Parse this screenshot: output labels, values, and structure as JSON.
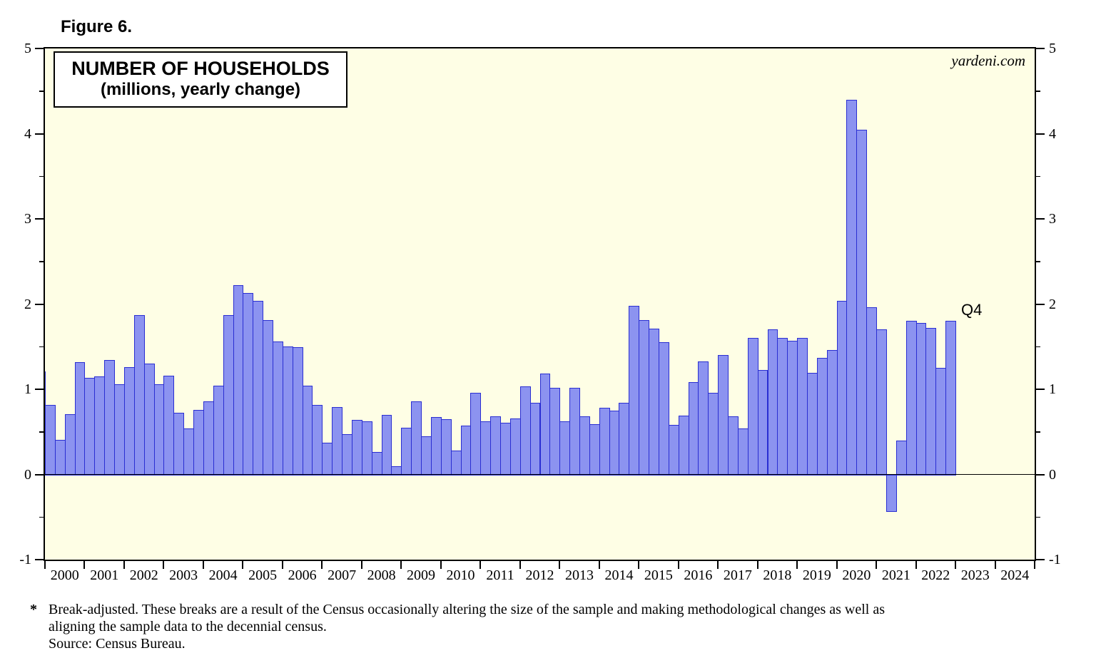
{
  "figure_label": "Figure 6.",
  "watermark": "yardeni.com",
  "title": {
    "line1": "NUMBER OF HOUSEHOLDS",
    "line2": "(millions, yearly change)"
  },
  "annotation": {
    "last_point_label": "Q4"
  },
  "footnote": {
    "marker": "*",
    "line1": "Break-adjusted. These breaks are a result of the Census occasionally altering the size of the sample and making methodological changes as well as",
    "line2": "aligning the sample data to the decennial census.",
    "source": "Source: Census Bureau."
  },
  "colors": {
    "bar_fill": "#8C93F0",
    "bar_border": "#2A2ED2",
    "plot_bg": "#FEFEE5",
    "axis": "#000000",
    "page_bg": "#FFFFFF"
  },
  "chart_data": {
    "type": "bar",
    "title": "NUMBER OF HOUSEHOLDS",
    "subtitle": "(millions, yearly change)",
    "ylabel": "Households, millions, yearly change",
    "ylim": [
      -1,
      5
    ],
    "yticks_major": [
      -1,
      0,
      1,
      2,
      3,
      4,
      5
    ],
    "ytick_minor_step": 0.5,
    "grid": false,
    "legend": "none",
    "x_axis_years": [
      "2000",
      "2001",
      "2002",
      "2003",
      "2004",
      "2005",
      "2006",
      "2007",
      "2008",
      "2009",
      "2010",
      "2011",
      "2012",
      "2013",
      "2014",
      "2015",
      "2016",
      "2017",
      "2018",
      "2019",
      "2020",
      "2021",
      "2022",
      "2023",
      "2024"
    ],
    "points": [
      [
        "1999Q4",
        1.21
      ],
      [
        "2000Q1",
        0.82
      ],
      [
        "2000Q2",
        0.41
      ],
      [
        "2000Q3",
        0.71
      ],
      [
        "2000Q4",
        1.32
      ],
      [
        "2001Q1",
        1.13
      ],
      [
        "2001Q2",
        1.15
      ],
      [
        "2001Q3",
        1.34
      ],
      [
        "2001Q4",
        1.06
      ],
      [
        "2002Q1",
        1.26
      ],
      [
        "2002Q2",
        1.87
      ],
      [
        "2002Q3",
        1.3
      ],
      [
        "2002Q4",
        1.06
      ],
      [
        "2003Q1",
        1.16
      ],
      [
        "2003Q2",
        0.72
      ],
      [
        "2003Q3",
        0.54
      ],
      [
        "2003Q4",
        0.76
      ],
      [
        "2004Q1",
        0.86
      ],
      [
        "2004Q2",
        1.04
      ],
      [
        "2004Q3",
        1.87
      ],
      [
        "2004Q4",
        2.22
      ],
      [
        "2005Q1",
        2.13
      ],
      [
        "2005Q2",
        2.04
      ],
      [
        "2005Q3",
        1.81
      ],
      [
        "2005Q4",
        1.56
      ],
      [
        "2006Q1",
        1.5
      ],
      [
        "2006Q2",
        1.49
      ],
      [
        "2006Q3",
        1.04
      ],
      [
        "2006Q4",
        0.82
      ],
      [
        "2007Q1",
        0.37
      ],
      [
        "2007Q2",
        0.79
      ],
      [
        "2007Q3",
        0.47
      ],
      [
        "2007Q4",
        0.64
      ],
      [
        "2008Q1",
        0.62
      ],
      [
        "2008Q2",
        0.26
      ],
      [
        "2008Q3",
        0.7
      ],
      [
        "2008Q4",
        0.1
      ],
      [
        "2009Q1",
        0.55
      ],
      [
        "2009Q2",
        0.86
      ],
      [
        "2009Q3",
        0.45
      ],
      [
        "2009Q4",
        0.67
      ],
      [
        "2010Q1",
        0.65
      ],
      [
        "2010Q2",
        0.28
      ],
      [
        "2010Q3",
        0.57
      ],
      [
        "2010Q4",
        0.96
      ],
      [
        "2011Q1",
        0.62
      ],
      [
        "2011Q2",
        0.68
      ],
      [
        "2011Q3",
        0.61
      ],
      [
        "2011Q4",
        0.66
      ],
      [
        "2012Q1",
        1.03
      ],
      [
        "2012Q2",
        0.84
      ],
      [
        "2012Q3",
        1.18
      ],
      [
        "2012Q4",
        1.02
      ],
      [
        "2013Q1",
        0.62
      ],
      [
        "2013Q2",
        1.02
      ],
      [
        "2013Q3",
        0.68
      ],
      [
        "2013Q4",
        0.59
      ],
      [
        "2014Q1",
        0.78
      ],
      [
        "2014Q2",
        0.75
      ],
      [
        "2014Q3",
        0.84
      ],
      [
        "2014Q4",
        1.98
      ],
      [
        "2015Q1",
        1.81
      ],
      [
        "2015Q2",
        1.71
      ],
      [
        "2015Q3",
        1.55
      ],
      [
        "2015Q4",
        0.58
      ],
      [
        "2016Q1",
        0.69
      ],
      [
        "2016Q2",
        1.08
      ],
      [
        "2016Q3",
        1.33
      ],
      [
        "2016Q4",
        0.96
      ],
      [
        "2017Q1",
        1.4
      ],
      [
        "2017Q2",
        0.68
      ],
      [
        "2017Q3",
        0.54
      ],
      [
        "2017Q4",
        1.6
      ],
      [
        "2018Q1",
        1.23
      ],
      [
        "2018Q2",
        1.7
      ],
      [
        "2018Q3",
        1.6
      ],
      [
        "2018Q4",
        1.57
      ],
      [
        "2019Q1",
        1.6
      ],
      [
        "2019Q2",
        1.19
      ],
      [
        "2019Q3",
        1.37
      ],
      [
        "2019Q4",
        1.46
      ],
      [
        "2020Q1",
        2.04
      ],
      [
        "2020Q2",
        4.4
      ],
      [
        "2020Q3",
        4.05
      ],
      [
        "2020Q4",
        1.96
      ],
      [
        "2021Q1",
        1.7
      ],
      [
        "2021Q2",
        -0.44
      ],
      [
        "2021Q3",
        0.4
      ],
      [
        "2021Q4",
        1.8
      ],
      [
        "2022Q1",
        1.78
      ],
      [
        "2022Q2",
        1.72
      ],
      [
        "2022Q3",
        1.25
      ],
      [
        "2022Q4",
        1.8
      ]
    ]
  }
}
